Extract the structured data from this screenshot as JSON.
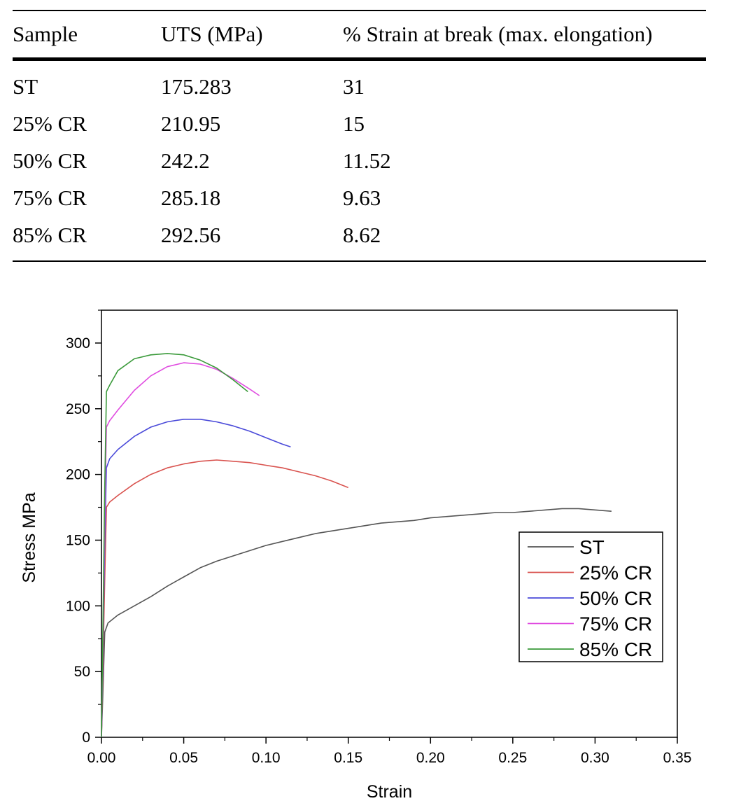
{
  "table": {
    "headers": [
      "Sample",
      "UTS (MPa)",
      "% Strain at break (max. elongation)"
    ],
    "rows": [
      [
        "ST",
        "175.283",
        "31"
      ],
      [
        "25% CR",
        "210.95",
        "15"
      ],
      [
        "50% CR",
        "242.2",
        "11.52"
      ],
      [
        "75% CR",
        "285.18",
        "9.63"
      ],
      [
        "85% CR",
        "292.56",
        "8.62"
      ]
    ]
  },
  "chart_data": {
    "type": "line",
    "xlabel": "Strain",
    "ylabel": "Stress MPa",
    "xlim": [
      0,
      0.35
    ],
    "ylim": [
      0,
      325
    ],
    "x_ticks": [
      "0.00",
      "0.05",
      "0.10",
      "0.15",
      "0.20",
      "0.25",
      "0.30",
      "0.35"
    ],
    "y_ticks": [
      "0",
      "50",
      "100",
      "150",
      "200",
      "250",
      "300"
    ],
    "grid": false,
    "legend_position": "right",
    "series": [
      {
        "name": "ST",
        "color": "#555555",
        "points": [
          [
            0,
            0
          ],
          [
            0.001,
            40
          ],
          [
            0.002,
            80
          ],
          [
            0.004,
            87
          ],
          [
            0.01,
            93
          ],
          [
            0.02,
            100
          ],
          [
            0.03,
            107
          ],
          [
            0.04,
            115
          ],
          [
            0.05,
            122
          ],
          [
            0.06,
            129
          ],
          [
            0.07,
            134
          ],
          [
            0.08,
            138
          ],
          [
            0.09,
            142
          ],
          [
            0.1,
            146
          ],
          [
            0.11,
            149
          ],
          [
            0.12,
            152
          ],
          [
            0.13,
            155
          ],
          [
            0.14,
            157
          ],
          [
            0.15,
            159
          ],
          [
            0.16,
            161
          ],
          [
            0.17,
            163
          ],
          [
            0.18,
            164
          ],
          [
            0.19,
            165
          ],
          [
            0.2,
            167
          ],
          [
            0.21,
            168
          ],
          [
            0.22,
            169
          ],
          [
            0.23,
            170
          ],
          [
            0.24,
            171
          ],
          [
            0.25,
            171
          ],
          [
            0.26,
            172
          ],
          [
            0.27,
            173
          ],
          [
            0.28,
            174
          ],
          [
            0.29,
            174
          ],
          [
            0.3,
            173
          ],
          [
            0.31,
            172
          ]
        ]
      },
      {
        "name": "25% CR",
        "color": "#d9534f",
        "points": [
          [
            0,
            0
          ],
          [
            0.002,
            120
          ],
          [
            0.003,
            175
          ],
          [
            0.005,
            179
          ],
          [
            0.01,
            184
          ],
          [
            0.02,
            193
          ],
          [
            0.03,
            200
          ],
          [
            0.04,
            205
          ],
          [
            0.05,
            208
          ],
          [
            0.06,
            210
          ],
          [
            0.07,
            211
          ],
          [
            0.08,
            210
          ],
          [
            0.09,
            209
          ],
          [
            0.1,
            207
          ],
          [
            0.11,
            205
          ],
          [
            0.12,
            202
          ],
          [
            0.13,
            199
          ],
          [
            0.14,
            195
          ],
          [
            0.15,
            190
          ]
        ]
      },
      {
        "name": "50% CR",
        "color": "#4a4ad9",
        "points": [
          [
            0,
            0
          ],
          [
            0.002,
            150
          ],
          [
            0.003,
            205
          ],
          [
            0.005,
            212
          ],
          [
            0.01,
            219
          ],
          [
            0.02,
            229
          ],
          [
            0.03,
            236
          ],
          [
            0.04,
            240
          ],
          [
            0.05,
            242
          ],
          [
            0.06,
            242
          ],
          [
            0.07,
            240
          ],
          [
            0.08,
            237
          ],
          [
            0.09,
            233
          ],
          [
            0.1,
            228
          ],
          [
            0.11,
            223
          ],
          [
            0.115,
            221
          ]
        ]
      },
      {
        "name": "75% CR",
        "color": "#e04ce0",
        "points": [
          [
            0,
            0
          ],
          [
            0.002,
            170
          ],
          [
            0.003,
            236
          ],
          [
            0.005,
            241
          ],
          [
            0.01,
            249
          ],
          [
            0.02,
            264
          ],
          [
            0.03,
            275
          ],
          [
            0.04,
            282
          ],
          [
            0.05,
            285
          ],
          [
            0.06,
            284
          ],
          [
            0.07,
            280
          ],
          [
            0.08,
            273
          ],
          [
            0.09,
            265
          ],
          [
            0.096,
            260
          ]
        ]
      },
      {
        "name": "85% CR",
        "color": "#3a9a3a",
        "points": [
          [
            0,
            0
          ],
          [
            0.002,
            190
          ],
          [
            0.003,
            263
          ],
          [
            0.005,
            268
          ],
          [
            0.01,
            279
          ],
          [
            0.02,
            288
          ],
          [
            0.03,
            291
          ],
          [
            0.04,
            292
          ],
          [
            0.05,
            291
          ],
          [
            0.06,
            287
          ],
          [
            0.07,
            281
          ],
          [
            0.08,
            272
          ],
          [
            0.089,
            263
          ]
        ]
      }
    ]
  }
}
